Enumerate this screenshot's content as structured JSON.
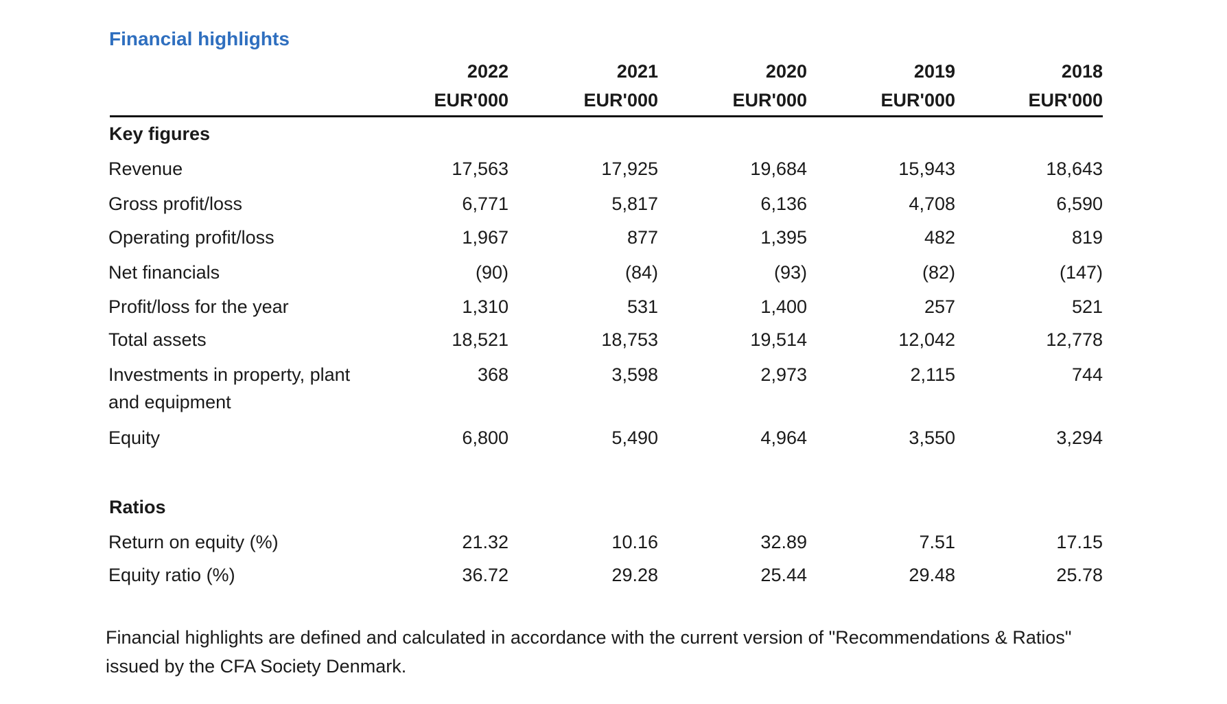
{
  "title": "Financial highlights",
  "columns": [
    {
      "year": "2022",
      "unit": "EUR'000"
    },
    {
      "year": "2021",
      "unit": "EUR'000"
    },
    {
      "year": "2020",
      "unit": "EUR'000"
    },
    {
      "year": "2019",
      "unit": "EUR'000"
    },
    {
      "year": "2018",
      "unit": "EUR'000"
    }
  ],
  "sections": [
    {
      "heading": "Key figures",
      "rows": [
        {
          "label": "Revenue",
          "values": [
            "17,563",
            "17,925",
            "19,684",
            "15,943",
            "18,643"
          ]
        },
        {
          "label": "Gross profit/loss",
          "values": [
            "6,771",
            "5,817",
            "6,136",
            "4,708",
            "6,590"
          ]
        },
        {
          "label": "Operating profit/loss",
          "values": [
            "1,967",
            "877",
            "1,395",
            "482",
            "819"
          ]
        },
        {
          "label": "Net financials",
          "values": [
            "(90)",
            "(84)",
            "(93)",
            "(82)",
            "(147)"
          ]
        },
        {
          "label": "Profit/loss for the year",
          "values": [
            "1,310",
            "531",
            "1,400",
            "257",
            "521"
          ]
        },
        {
          "label": "Total assets",
          "values": [
            "18,521",
            "18,753",
            "19,514",
            "12,042",
            "12,778"
          ]
        },
        {
          "label": "Investments in property, plant and equipment",
          "values": [
            "368",
            "3,598",
            "2,973",
            "2,115",
            "744"
          ]
        },
        {
          "label": "Equity",
          "values": [
            "6,800",
            "5,490",
            "4,964",
            "3,550",
            "3,294"
          ]
        }
      ]
    },
    {
      "heading": "Ratios",
      "rows": [
        {
          "label": "Return on equity (%)",
          "values": [
            "21.32",
            "10.16",
            "32.89",
            "7.51",
            "17.15"
          ]
        },
        {
          "label": "Equity ratio (%)",
          "values": [
            "36.72",
            "29.28",
            "25.44",
            "29.48",
            "25.78"
          ]
        }
      ]
    }
  ],
  "footnote": "Financial highlights are defined and calculated in accordance with the current version of \"Recommendations & Ratios\" issued by the CFA Society Denmark."
}
